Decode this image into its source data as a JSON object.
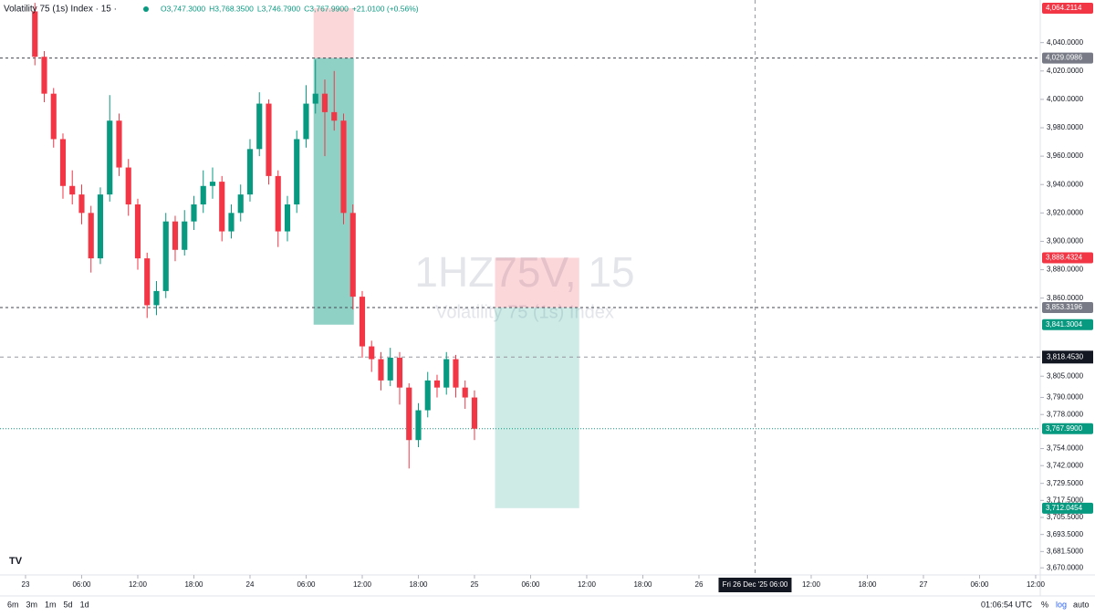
{
  "chart_data": {
    "type": "candlestick",
    "title": "Volatility 75 (1s) Index · 15 ·",
    "ohlc_text": {
      "open": "O3,747.3000",
      "high": "H3,768.3500",
      "low": "L3,746.7900",
      "close": "C3,767.9900",
      "change": "+21.0100 (+0.56%)"
    },
    "watermark": "1HZ75V, 15",
    "watermark_subtitle": "Volatility 75 (1s) Index",
    "up_color": "#089981",
    "down_color": "#f23645",
    "x": [
      1,
      2,
      3,
      4,
      5,
      6,
      7,
      8,
      9,
      10,
      11,
      12,
      13,
      14,
      15,
      16,
      17,
      18,
      19,
      20,
      21,
      22,
      23,
      24,
      25,
      26,
      27,
      28,
      29,
      30,
      31,
      32,
      33,
      34,
      35,
      36,
      37,
      38,
      39,
      40,
      41,
      42,
      43,
      44,
      45,
      46,
      47,
      48
    ],
    "open": [
      4062,
      4030,
      4004,
      3972,
      3939,
      3933,
      3920,
      3888,
      3933,
      3985,
      3952,
      3926,
      3888,
      3855,
      3865,
      3914,
      3894,
      3914,
      3926,
      3939,
      3942,
      3907,
      3920,
      3933,
      3965,
      3997,
      3946,
      3907,
      3926,
      3972,
      3997,
      4004,
      3991,
      3985,
      3920,
      3861,
      3826,
      3817,
      3802,
      3818,
      3797,
      3760,
      3781,
      3802,
      3797,
      3817,
      3797,
      3790
    ],
    "high": [
      4068,
      4034,
      4008,
      3976,
      3950,
      3940,
      3925,
      3938,
      4003,
      3990,
      3958,
      3930,
      3892,
      3872,
      3920,
      3918,
      3922,
      3932,
      3950,
      3952,
      3946,
      3926,
      3940,
      3972,
      4005,
      4000,
      3950,
      3932,
      3978,
      4010,
      4028,
      4014,
      4020,
      3990,
      3926,
      3865,
      3830,
      3822,
      3825,
      3822,
      3800,
      3786,
      3808,
      3806,
      3822,
      3820,
      3802,
      3795
    ],
    "low": [
      4024,
      3998,
      3966,
      3930,
      3926,
      3912,
      3878,
      3884,
      3928,
      3946,
      3918,
      3880,
      3846,
      3848,
      3860,
      3886,
      3890,
      3908,
      3920,
      3930,
      3900,
      3902,
      3914,
      3928,
      3960,
      3940,
      3896,
      3900,
      3920,
      3966,
      3990,
      3960,
      3978,
      3912,
      3852,
      3818,
      3808,
      3795,
      3798,
      3785,
      3740,
      3755,
      3776,
      3790,
      3792,
      3790,
      3782,
      3760
    ],
    "close": [
      4030,
      4004,
      3972,
      3939,
      3933,
      3920,
      3888,
      3933,
      3985,
      3952,
      3926,
      3888,
      3855,
      3865,
      3914,
      3894,
      3914,
      3926,
      3939,
      3942,
      3907,
      3920,
      3933,
      3965,
      3997,
      3946,
      3907,
      3926,
      3972,
      3997,
      4004,
      3991,
      3985,
      3920,
      3861,
      3826,
      3817,
      3802,
      3818,
      3797,
      3760,
      3781,
      3802,
      3797,
      3817,
      3797,
      3790,
      3768
    ],
    "xlim": [
      -2.73,
      108.49
    ],
    "xticks": [
      {
        "value": 0,
        "label": "23"
      },
      {
        "value": 6,
        "label": "06:00"
      },
      {
        "value": 12,
        "label": "12:00"
      },
      {
        "value": 18,
        "label": "18:00"
      },
      {
        "value": 24,
        "label": "24"
      },
      {
        "value": 30,
        "label": "06:00"
      },
      {
        "value": 36,
        "label": "12:00"
      },
      {
        "value": 42,
        "label": "18:00"
      },
      {
        "value": 48,
        "label": "25"
      },
      {
        "value": 54,
        "label": "06:00"
      },
      {
        "value": 60,
        "label": "12:00"
      },
      {
        "value": 66,
        "label": "18:00"
      },
      {
        "value": 72,
        "label": "26"
      },
      {
        "value": 84,
        "label": "12:00"
      },
      {
        "value": 90,
        "label": "18:00"
      },
      {
        "value": 96,
        "label": "27"
      },
      {
        "value": 102,
        "label": "06:00"
      },
      {
        "value": 108,
        "label": "12:00"
      }
    ],
    "ylim": [
      3665,
      4070
    ],
    "yticks": [
      {
        "value": 4040,
        "label": "4,040.0000"
      },
      {
        "value": 4020,
        "label": "4,020.0000"
      },
      {
        "value": 4000,
        "label": "4,000.0000"
      },
      {
        "value": 3980,
        "label": "3,980.0000"
      },
      {
        "value": 3960,
        "label": "3,960.0000"
      },
      {
        "value": 3940,
        "label": "3,940.0000"
      },
      {
        "value": 3920,
        "label": "3,920.0000"
      },
      {
        "value": 3900,
        "label": "3,900.0000"
      },
      {
        "value": 3880,
        "label": "3,880.0000"
      },
      {
        "value": 3860,
        "label": "3,860.0000"
      },
      {
        "value": 3805,
        "label": "3,805.0000"
      },
      {
        "value": 3790,
        "label": "3,790.0000"
      },
      {
        "value": 3778,
        "label": "3,778.0000"
      },
      {
        "value": 3754,
        "label": "3,754.0000"
      },
      {
        "value": 3742,
        "label": "3,742.0000"
      },
      {
        "value": 3729.5,
        "label": "3,729.5000"
      },
      {
        "value": 3717.5,
        "label": "3,717.5000"
      },
      {
        "value": 3705.5,
        "label": "3,705.5000"
      },
      {
        "value": 3693.5,
        "label": "3,693.5000"
      },
      {
        "value": 3681.5,
        "label": "3,681.5000"
      },
      {
        "value": 3670,
        "label": "3,670.0000"
      }
    ],
    "positions": [
      {
        "start": 30.8,
        "end": 35.1,
        "stop": 4064.2114,
        "entry": 4029.0986,
        "target": 3841.3004
      },
      {
        "start": 50.2,
        "end": 59.2,
        "stop": 3888.4324,
        "entry": 3853.3196,
        "target": 3712.0454
      }
    ],
    "price_labels": [
      {
        "value": 4064.2114,
        "label": "4,064.2114",
        "color": "#f23645"
      },
      {
        "value": 4029.0986,
        "label": "4,029.0986",
        "color": "#787b86",
        "line": "dashed"
      },
      {
        "value": 3888.4324,
        "label": "3,888.4324",
        "color": "#f23645"
      },
      {
        "value": 3853.3196,
        "label": "3,853.3196",
        "color": "#787b86",
        "line": "dashed"
      },
      {
        "value": 3841.3004,
        "label": "3,841.3004",
        "color": "#089981"
      },
      {
        "value": 3767.99,
        "label": "3,767.9900",
        "color": "#089981",
        "line": "dotted"
      },
      {
        "value": 3712.0454,
        "label": "3,712.0454",
        "color": "#089981"
      }
    ],
    "crosshair": {
      "x": 78,
      "x_label": "Fri 26 Dec '25  06:00",
      "y": 3818.453,
      "y_label": "3,818.4530"
    },
    "toolbar": {
      "intervals": [
        "6m",
        "3m",
        "1m",
        "5d",
        "1d"
      ],
      "clock": "01:06:54 UTC",
      "percent": "%",
      "log": "log",
      "auto": "auto"
    }
  }
}
